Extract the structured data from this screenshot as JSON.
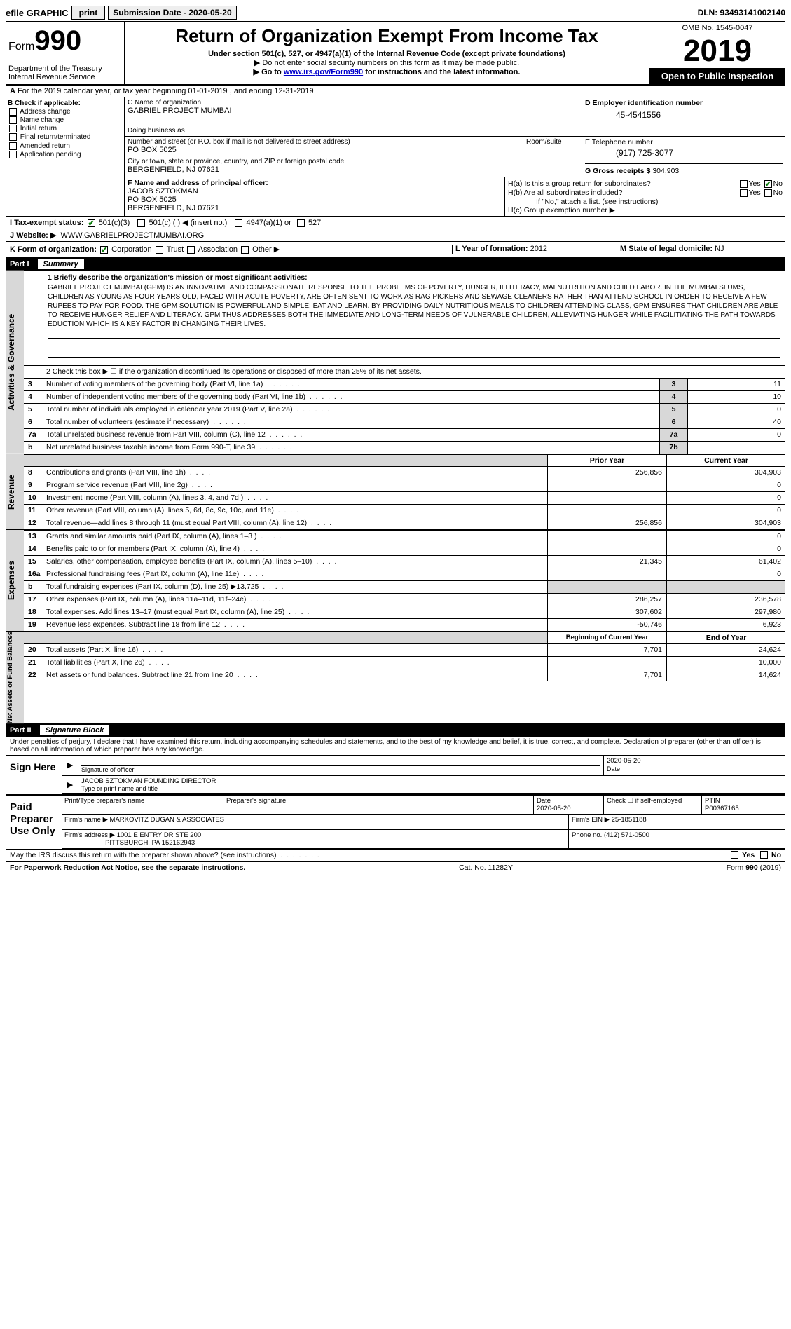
{
  "efile": {
    "label": "efile GRAPHIC",
    "print_btn": "print",
    "sub_date_label": "Submission Date - 2020-05-20",
    "dln": "DLN: 93493141002140"
  },
  "header": {
    "form_prefix": "Form",
    "form_num": "990",
    "dept": "Department of the Treasury\nInternal Revenue Service",
    "title": "Return of Organization Exempt From Income Tax",
    "sub1": "Under section 501(c), 527, or 4947(a)(1) of the Internal Revenue Code (except private foundations)",
    "sub2": "▶ Do not enter social security numbers on this form as it may be made public.",
    "sub3_pre": "▶ Go to ",
    "sub3_link": "www.irs.gov/Form990",
    "sub3_post": " for instructions and the latest information.",
    "omb": "OMB No. 1545-0047",
    "year": "2019",
    "inspection": "Open to Public Inspection"
  },
  "period": "For the 2019 calendar year, or tax year beginning 01-01-2019   , and ending 12-31-2019",
  "sectionB": {
    "label": "B Check if applicable:",
    "opts": [
      "Address change",
      "Name change",
      "Initial return",
      "Final return/terminated",
      "Amended return",
      "Application pending"
    ]
  },
  "sectionC": {
    "name_lbl": "C Name of organization",
    "name": "GABRIEL PROJECT MUMBAI",
    "dba_lbl": "Doing business as",
    "addr_lbl": "Number and street (or P.O. box if mail is not delivered to street address)",
    "addr": "PO BOX 5025",
    "room_lbl": "Room/suite",
    "city_lbl": "City or town, state or province, country, and ZIP or foreign postal code",
    "city": "BERGENFIELD, NJ  07621"
  },
  "sectionD": {
    "lbl": "D Employer identification number",
    "val": "45-4541556"
  },
  "sectionE": {
    "lbl": "E Telephone number",
    "val": "(917) 725-3077"
  },
  "sectionG": {
    "lbl": "G Gross receipts $",
    "val": "304,903"
  },
  "sectionF": {
    "lbl": "F  Name and address of principal officer:",
    "name": "JACOB SZTOKMAN",
    "addr1": "PO BOX 5025",
    "addr2": "BERGENFIELD, NJ  07621"
  },
  "sectionH": {
    "a": "H(a)  Is this a group return for subordinates?",
    "b": "H(b)  Are all subordinates included?",
    "b_note": "If \"No,\" attach a list. (see instructions)",
    "c": "H(c)  Group exemption number ▶",
    "yes": "Yes",
    "no": "No"
  },
  "sectionI": {
    "lbl": "I   Tax-exempt status:",
    "o1": "501(c)(3)",
    "o2": "501(c) (  ) ◀ (insert no.)",
    "o3": "4947(a)(1) or",
    "o4": "527"
  },
  "sectionJ": {
    "lbl": "J   Website: ▶",
    "val": "WWW.GABRIELPROJECTMUMBAI.ORG"
  },
  "sectionK": {
    "lbl": "K Form of organization:",
    "o1": "Corporation",
    "o2": "Trust",
    "o3": "Association",
    "o4": "Other ▶"
  },
  "sectionL": {
    "lbl": "L Year of formation:",
    "val": "2012"
  },
  "sectionM": {
    "lbl": "M State of legal domicile:",
    "val": "NJ"
  },
  "part1": {
    "num": "Part I",
    "title": "Summary"
  },
  "governance": {
    "label": "Activities & Governance",
    "l1_lbl": "1  Briefly describe the organization's mission or most significant activities:",
    "l1_text": "GABRIEL PROJECT MUMBAI (GPM) IS AN INNOVATIVE AND COMPASSIONATE RESPONSE TO THE PROBLEMS OF POVERTY, HUNGER, ILLITERACY, MALNUTRITION AND CHILD LABOR. IN THE MUMBAI SLUMS, CHILDREN AS YOUNG AS FOUR YEARS OLD, FACED WITH ACUTE POVERTY, ARE OFTEN SENT TO WORK AS RAG PICKERS AND SEWAGE CLEANERS RATHER THAN ATTEND SCHOOL IN ORDER TO RECEIVE A FEW RUPEES TO PAY FOR FOOD. THE GPM SOLUTION IS POWERFUL AND SIMPLE: EAT AND LEARN. BY PROVIDING DAILY NUTRITIOUS MEALS TO CHILDREN ATTENDING CLASS, GPM ENSURES THAT CHILDREN ARE ABLE TO RECEIVE HUNGER RELIEF AND LITERACY. GPM THUS ADDRESSES BOTH THE IMMEDIATE AND LONG-TERM NEEDS OF VULNERABLE CHILDREN, ALLEVIATING HUNGER WHILE FACILITIATING THE PATH TOWARDS EDUCTION WHICH IS A KEY FACTOR IN CHANGING THEIR LIVES.",
    "l2": "2   Check this box ▶ ☐ if the organization discontinued its operations or disposed of more than 25% of its net assets.",
    "lines": [
      {
        "n": "3",
        "d": "Number of voting members of the governing body (Part VI, line 1a)",
        "box": "3",
        "v": "11"
      },
      {
        "n": "4",
        "d": "Number of independent voting members of the governing body (Part VI, line 1b)",
        "box": "4",
        "v": "10"
      },
      {
        "n": "5",
        "d": "Total number of individuals employed in calendar year 2019 (Part V, line 2a)",
        "box": "5",
        "v": "0"
      },
      {
        "n": "6",
        "d": "Total number of volunteers (estimate if necessary)",
        "box": "6",
        "v": "40"
      },
      {
        "n": "7a",
        "d": "Total unrelated business revenue from Part VIII, column (C), line 12",
        "box": "7a",
        "v": "0"
      },
      {
        "n": " b",
        "d": "Net unrelated business taxable income from Form 990-T, line 39",
        "box": "7b",
        "v": ""
      }
    ]
  },
  "revenue": {
    "label": "Revenue",
    "hdr_prior": "Prior Year",
    "hdr_curr": "Current Year",
    "lines": [
      {
        "n": "8",
        "d": "Contributions and grants (Part VIII, line 1h)",
        "p": "256,856",
        "c": "304,903"
      },
      {
        "n": "9",
        "d": "Program service revenue (Part VIII, line 2g)",
        "p": "",
        "c": "0"
      },
      {
        "n": "10",
        "d": "Investment income (Part VIII, column (A), lines 3, 4, and 7d )",
        "p": "",
        "c": "0"
      },
      {
        "n": "11",
        "d": "Other revenue (Part VIII, column (A), lines 5, 6d, 8c, 9c, 10c, and 11e)",
        "p": "",
        "c": "0"
      },
      {
        "n": "12",
        "d": "Total revenue—add lines 8 through 11 (must equal Part VIII, column (A), line 12)",
        "p": "256,856",
        "c": "304,903"
      }
    ]
  },
  "expenses": {
    "label": "Expenses",
    "lines": [
      {
        "n": "13",
        "d": "Grants and similar amounts paid (Part IX, column (A), lines 1–3 )",
        "p": "",
        "c": "0"
      },
      {
        "n": "14",
        "d": "Benefits paid to or for members (Part IX, column (A), line 4)",
        "p": "",
        "c": "0"
      },
      {
        "n": "15",
        "d": "Salaries, other compensation, employee benefits (Part IX, column (A), lines 5–10)",
        "p": "21,345",
        "c": "61,402"
      },
      {
        "n": "16a",
        "d": "Professional fundraising fees (Part IX, column (A), line 11e)",
        "p": "",
        "c": "0"
      },
      {
        "n": "b",
        "d": "Total fundraising expenses (Part IX, column (D), line 25) ▶13,725",
        "p": "__shade__",
        "c": "__shade__"
      },
      {
        "n": "17",
        "d": "Other expenses (Part IX, column (A), lines 11a–11d, 11f–24e)",
        "p": "286,257",
        "c": "236,578"
      },
      {
        "n": "18",
        "d": "Total expenses. Add lines 13–17 (must equal Part IX, column (A), line 25)",
        "p": "307,602",
        "c": "297,980"
      },
      {
        "n": "19",
        "d": "Revenue less expenses. Subtract line 18 from line 12",
        "p": "-50,746",
        "c": "6,923"
      }
    ]
  },
  "netassets": {
    "label": "Net Assets or Fund Balances",
    "hdr_prior": "Beginning of Current Year",
    "hdr_curr": "End of Year",
    "lines": [
      {
        "n": "20",
        "d": "Total assets (Part X, line 16)",
        "p": "7,701",
        "c": "24,624"
      },
      {
        "n": "21",
        "d": "Total liabilities (Part X, line 26)",
        "p": "",
        "c": "10,000"
      },
      {
        "n": "22",
        "d": "Net assets or fund balances. Subtract line 21 from line 20",
        "p": "7,701",
        "c": "14,624"
      }
    ]
  },
  "part2": {
    "num": "Part II",
    "title": "Signature Block"
  },
  "sig": {
    "decl": "Under penalties of perjury, I declare that I have examined this return, including accompanying schedules and statements, and to the best of my knowledge and belief, it is true, correct, and complete. Declaration of preparer (other than officer) is based on all information of which preparer has any knowledge.",
    "sign_here": "Sign Here",
    "sig_officer": "Signature of officer",
    "date_lbl": "Date",
    "date_val": "2020-05-20",
    "name_title": "JACOB SZTOKMAN  FOUNDING DIRECTOR",
    "type_lbl": "Type or print name and title",
    "paid": "Paid Preparer Use Only",
    "prep_name_lbl": "Print/Type preparer's name",
    "prep_sig_lbl": "Preparer's signature",
    "prep_date": "2020-05-20",
    "self_emp": "Check ☐ if self-employed",
    "ptin_lbl": "PTIN",
    "ptin": "P00367165",
    "firm_name_lbl": "Firm's name    ▶",
    "firm_name": "MARKOVITZ DUGAN & ASSOCIATES",
    "firm_ein_lbl": "Firm's EIN ▶",
    "firm_ein": "25-1851188",
    "firm_addr_lbl": "Firm's address ▶",
    "firm_addr1": "1001 E ENTRY DR STE 200",
    "firm_addr2": "PITTSBURGH, PA  152162943",
    "phone_lbl": "Phone no.",
    "phone": "(412) 571-0500",
    "discuss": "May the IRS discuss this return with the preparer shown above? (see instructions)",
    "yes": "Yes",
    "no": "No"
  },
  "footer": {
    "left": "For Paperwork Reduction Act Notice, see the separate instructions.",
    "mid": "Cat. No. 11282Y",
    "right": "Form 990 (2019)"
  }
}
